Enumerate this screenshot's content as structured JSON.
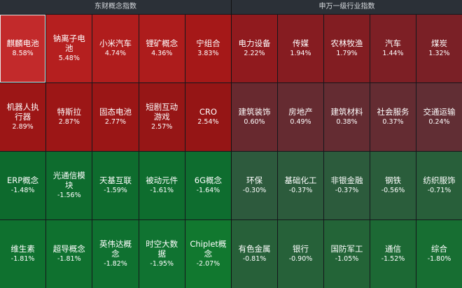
{
  "panels": [
    {
      "title": "东财概念指数",
      "tiles": [
        {
          "name": "麒麟电池",
          "pct": "8.58%",
          "color": "#c22a2b",
          "selected": true
        },
        {
          "name": "钠离子电池",
          "pct": "5.48%",
          "color": "#b51f1f"
        },
        {
          "name": "小米汽车",
          "pct": "4.74%",
          "color": "#b01d1d"
        },
        {
          "name": "锂矿概念",
          "pct": "4.36%",
          "color": "#ad1c1c"
        },
        {
          "name": "宁组合",
          "pct": "3.83%",
          "color": "#a51818"
        },
        {
          "name": "机器人执行器",
          "pct": "2.89%",
          "color": "#9c1616"
        },
        {
          "name": "特斯拉",
          "pct": "2.87%",
          "color": "#9c1616"
        },
        {
          "name": "固态电池",
          "pct": "2.77%",
          "color": "#9a1616"
        },
        {
          "name": "短剧互动游戏",
          "pct": "2.57%",
          "color": "#961616"
        },
        {
          "name": "CRO",
          "pct": "2.54%",
          "color": "#951515"
        },
        {
          "name": "ERP概念",
          "pct": "-1.48%",
          "color": "#0d6a2d"
        },
        {
          "name": "光通信模块",
          "pct": "-1.56%",
          "color": "#0e6c2e"
        },
        {
          "name": "天基互联",
          "pct": "-1.59%",
          "color": "#0e6c2e"
        },
        {
          "name": "被动元件",
          "pct": "-1.61%",
          "color": "#0e6d2e"
        },
        {
          "name": "6G概念",
          "pct": "-1.64%",
          "color": "#0e6d2f"
        },
        {
          "name": "维生素",
          "pct": "-1.81%",
          "color": "#0f712f"
        },
        {
          "name": "超导概念",
          "pct": "-1.81%",
          "color": "#0f712f"
        },
        {
          "name": "英伟达概念",
          "pct": "-1.82%",
          "color": "#0f7130"
        },
        {
          "name": "时空大数据",
          "pct": "-1.95%",
          "color": "#107331"
        },
        {
          "name": "Chiplet概念",
          "pct": "-2.07%",
          "color": "#11782f"
        }
      ]
    },
    {
      "title": "申万一级行业指数",
      "tiles": [
        {
          "name": "电力设备",
          "pct": "2.22%",
          "color": "#901a1e"
        },
        {
          "name": "传媒",
          "pct": "1.94%",
          "color": "#861c21"
        },
        {
          "name": "农林牧渔",
          "pct": "1.79%",
          "color": "#821d22"
        },
        {
          "name": "汽车",
          "pct": "1.44%",
          "color": "#7d1f25"
        },
        {
          "name": "煤炭",
          "pct": "1.32%",
          "color": "#7a2026"
        },
        {
          "name": "建筑装饰",
          "pct": "0.60%",
          "color": "#68292f"
        },
        {
          "name": "房地产",
          "pct": "0.49%",
          "color": "#652b31"
        },
        {
          "name": "建筑材料",
          "pct": "0.38%",
          "color": "#642c32"
        },
        {
          "name": "社会服务",
          "pct": "0.37%",
          "color": "#642c32"
        },
        {
          "name": "交通运输",
          "pct": "0.24%",
          "color": "#612e34"
        },
        {
          "name": "环保",
          "pct": "-0.30%",
          "color": "#2d5a3d"
        },
        {
          "name": "基础化工",
          "pct": "-0.37%",
          "color": "#2c5b3c"
        },
        {
          "name": "非银金融",
          "pct": "-0.37%",
          "color": "#2c5b3c"
        },
        {
          "name": "钢铁",
          "pct": "-0.56%",
          "color": "#2a5d3b"
        },
        {
          "name": "纺织服饰",
          "pct": "-0.71%",
          "color": "#285f3a"
        },
        {
          "name": "有色金属",
          "pct": "-0.81%",
          "color": "#276039"
        },
        {
          "name": "银行",
          "pct": "-0.90%",
          "color": "#266139"
        },
        {
          "name": "国防军工",
          "pct": "-1.05%",
          "color": "#236437"
        },
        {
          "name": "通信",
          "pct": "-1.52%",
          "color": "#1c6934"
        },
        {
          "name": "综合",
          "pct": "-1.80%",
          "color": "#176e32"
        }
      ]
    }
  ]
}
